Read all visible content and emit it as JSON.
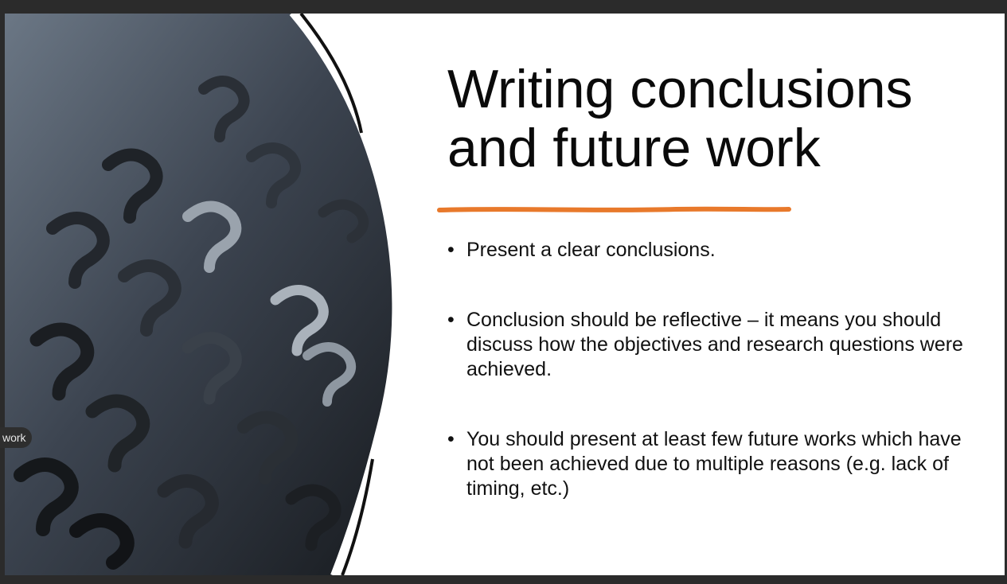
{
  "slide": {
    "title_line1": "Writing conclusions",
    "title_line2": "and future work",
    "accent_color": "#e8792b",
    "bullets": [
      {
        "marker": "•",
        "text": "Present a clear conclusions."
      },
      {
        "marker": "•",
        "text": "Conclusion should be reflective – it means you should discuss how the objectives and research questions were achieved."
      },
      {
        "marker": "•",
        "text": "You should present at least few future works which have not been achieved due to multiple reasons (e.g. lack of timing, etc.)"
      }
    ],
    "image_icon": "question-marks-photo"
  },
  "tooltip": {
    "text": "work"
  }
}
